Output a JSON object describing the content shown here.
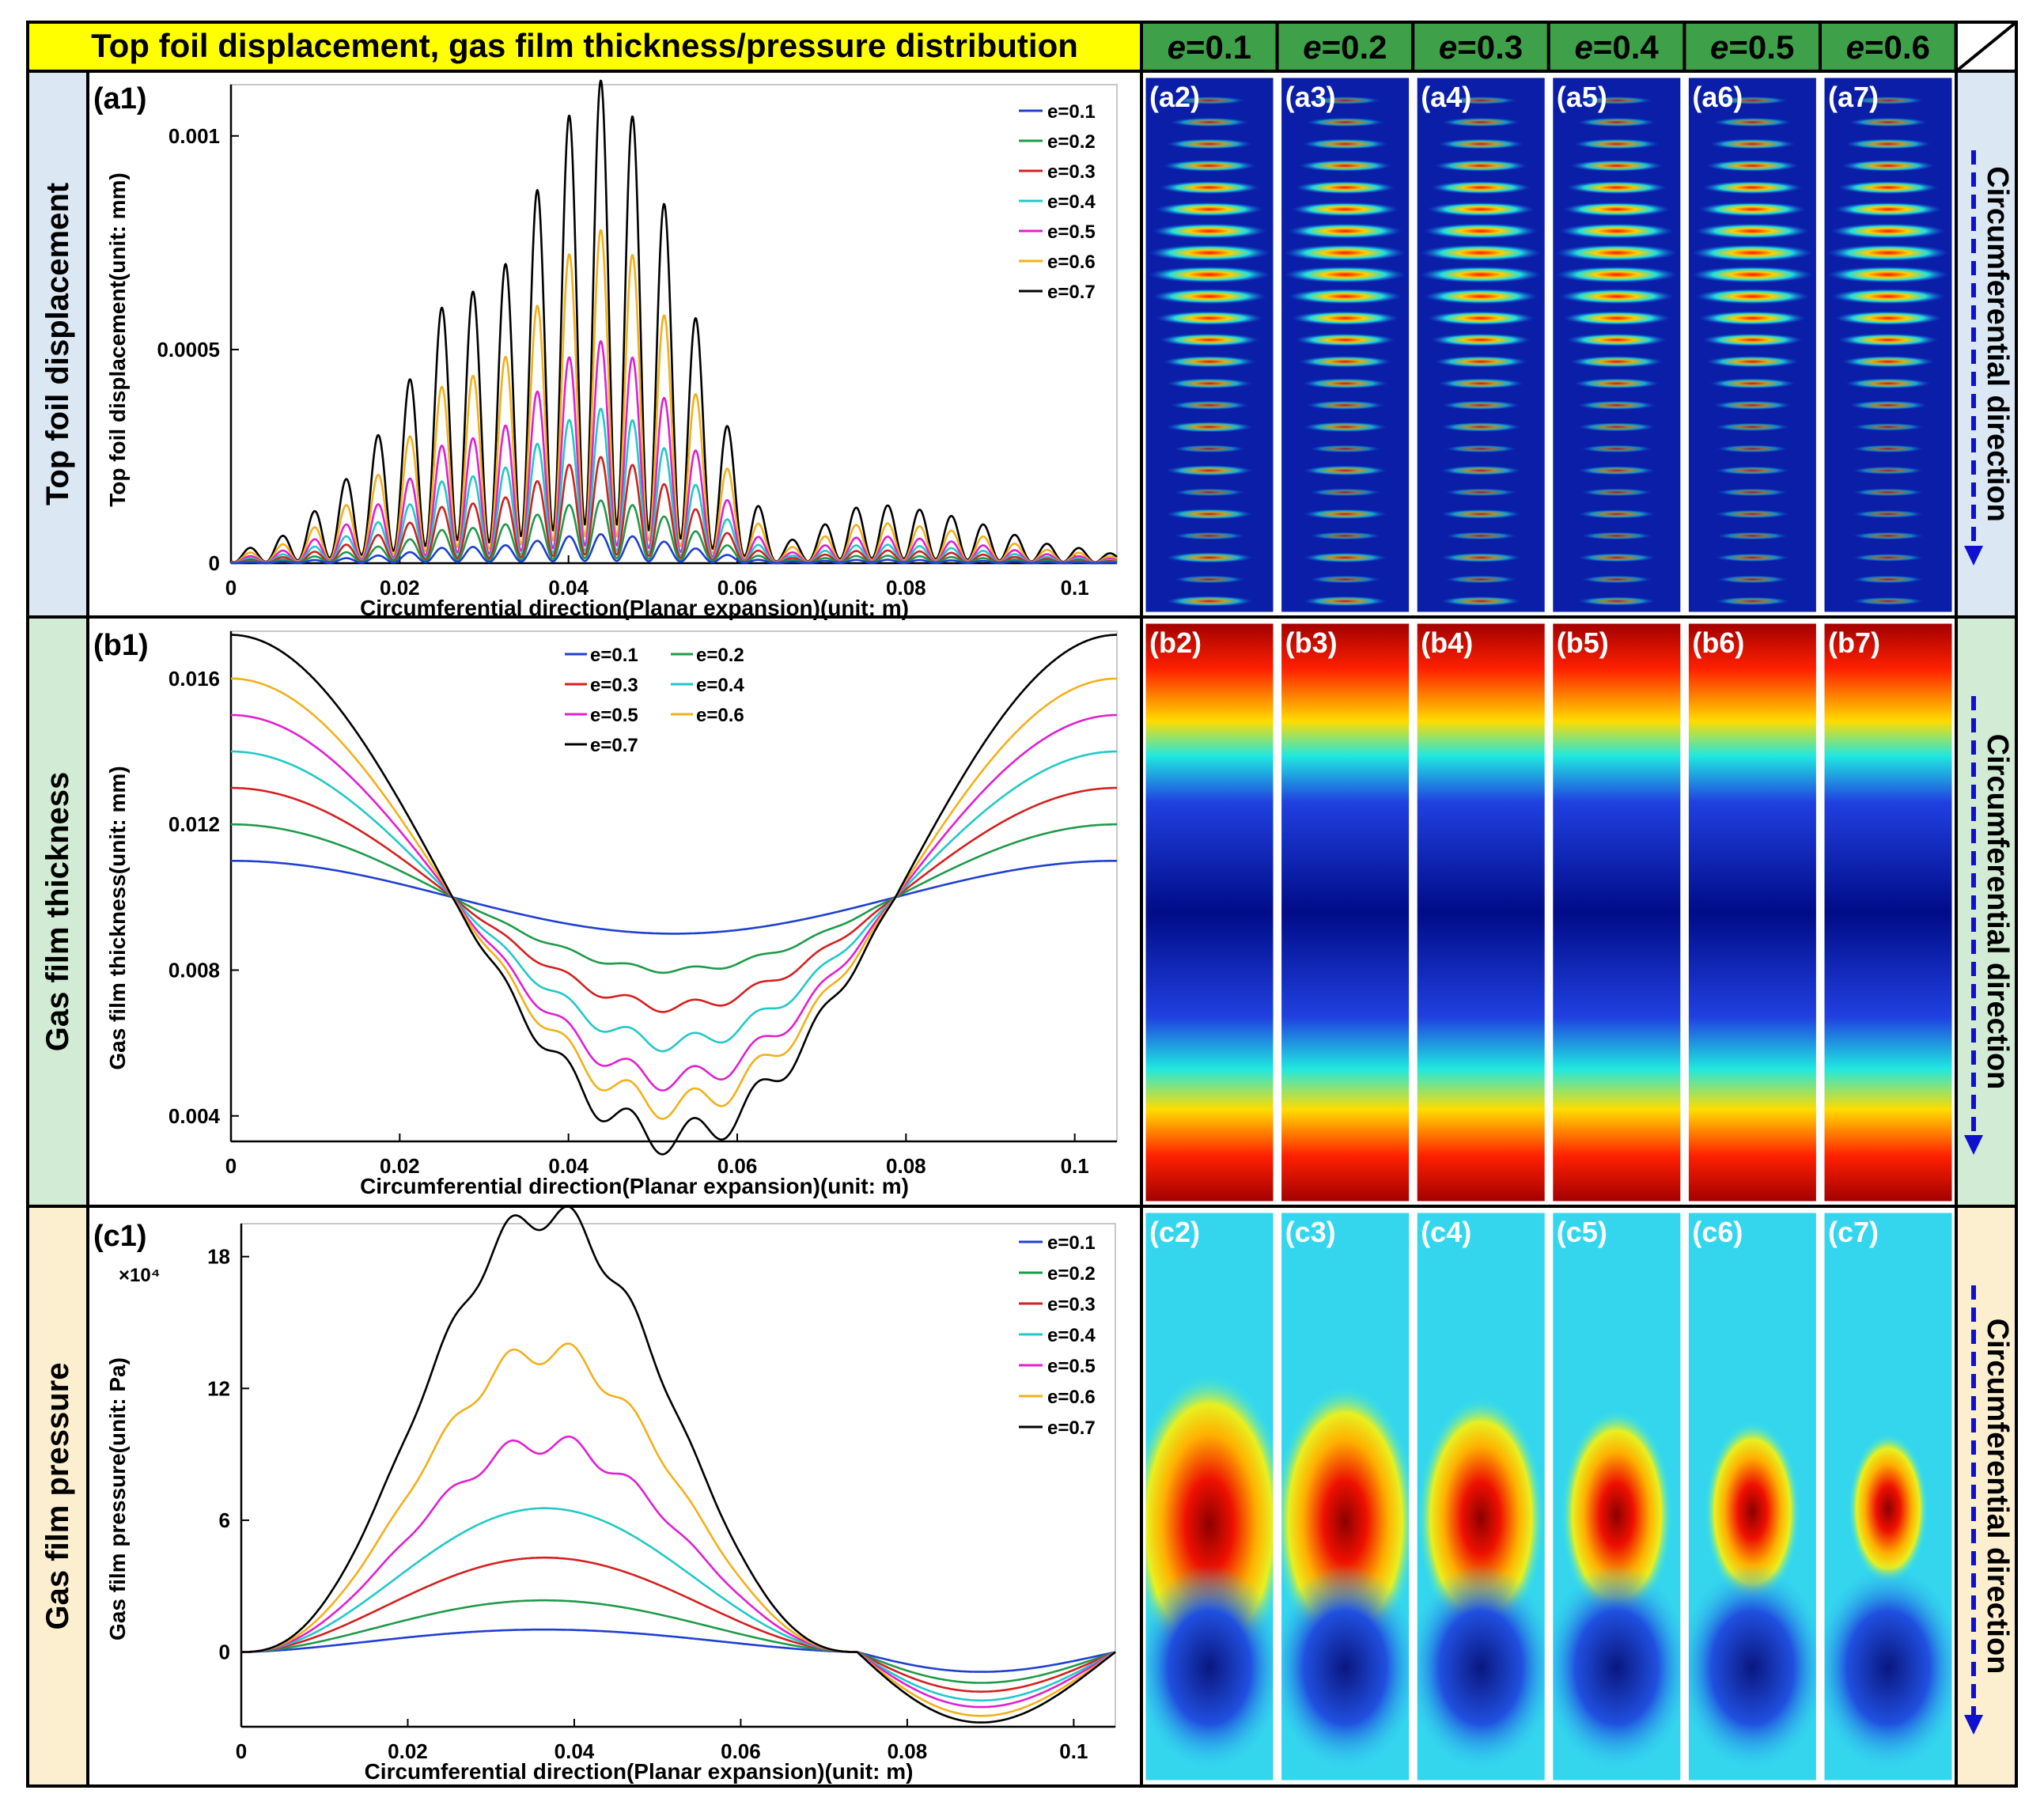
{
  "header": {
    "title": "Top foil displacement, gas film thickness/pressure distribution",
    "columns": [
      "e=0.1",
      "e=0.2",
      "e=0.3",
      "e=0.4",
      "e=0.5",
      "e=0.6"
    ]
  },
  "rows": [
    {
      "label": "Top foil displacement",
      "side_label": "Circumferential direction",
      "band_color": "#dbe8f3",
      "panel_tags": [
        "(a2)",
        "(a3)",
        "(a4)",
        "(a5)",
        "(a6)",
        "(a7)"
      ]
    },
    {
      "label": "Gas film thickness",
      "side_label": "Circumferential direction",
      "band_color": "#d2ebd5",
      "panel_tags": [
        "(b2)",
        "(b3)",
        "(b4)",
        "(b5)",
        "(b6)",
        "(b7)"
      ]
    },
    {
      "label": "Gas film pressure",
      "side_label": "Circumferential direction",
      "band_color": "#fcefcf",
      "panel_tags": [
        "(c2)",
        "(c3)",
        "(c4)",
        "(c5)",
        "(c6)",
        "(c7)"
      ]
    }
  ],
  "colors": {
    "header_yellow": "#ffff00",
    "header_green": "#3ea14a",
    "e=0.1": "#1f3fd0",
    "e=0.2": "#1e9a4a",
    "e=0.3": "#d42020",
    "e=0.4": "#22c8c8",
    "e=0.5": "#e020d0",
    "e=0.6": "#f2b01a",
    "e=0.7": "#000000"
  },
  "chart_data": [
    {
      "panel": "(a1)",
      "type": "line",
      "xlabel": "Circumferential direction(Planar expansion)(unit: m)",
      "ylabel": "Top foil displacement(unit: mm)",
      "xlim": [
        0,
        0.105
      ],
      "ylim": [
        0,
        0.00112
      ],
      "xticks": [
        "0",
        "0.02",
        "0.04",
        "0.06",
        "0.08",
        "0.1"
      ],
      "yticks": [
        "0",
        "0.0005",
        "0.001"
      ],
      "legend": [
        "e=0.1",
        "e=0.2",
        "e=0.3",
        "e=0.4",
        "e=0.5",
        "e=0.6",
        "e=0.7"
      ],
      "legend_position": "top-right",
      "series": [
        {
          "name": "e=0.7",
          "x": [
            0.0,
            0.0038,
            0.0076,
            0.0114,
            0.0152,
            0.019,
            0.0228,
            0.0266,
            0.0304,
            0.0342,
            0.038,
            0.0418,
            0.0456,
            0.0494,
            0.0532,
            0.057,
            0.0608,
            0.0646,
            0.0684,
            0.0722,
            0.076,
            0.0798,
            0.0836,
            0.0874,
            0.0912,
            0.095,
            0.0988,
            0.1026,
            0.105
          ],
          "peaks": [
            3e-05,
            4e-05,
            8e-05,
            0.00015,
            0.00023,
            0.00035,
            0.00049,
            0.00068,
            0.0006,
            0.00078,
            0.00095,
            0.00113,
            0.00113,
            0.00097,
            0.00072,
            0.00043,
            0.00021,
            5e-05,
            6e-05,
            0.00012,
            0.00014,
            0.00013,
            0.00012,
            0.0001,
            8e-05,
            5e-05,
            4e-05,
            3e-05,
            2e-05
          ]
        },
        {
          "name": "e=0.6",
          "peak_scale": 0.69
        },
        {
          "name": "e=0.5",
          "peak_scale": 0.46
        },
        {
          "name": "e=0.4",
          "peak_scale": 0.32
        },
        {
          "name": "e=0.3",
          "peak_scale": 0.22
        },
        {
          "name": "e=0.2",
          "peak_scale": 0.13
        },
        {
          "name": "e=0.1",
          "peak_scale": 0.06
        }
      ]
    },
    {
      "panel": "(b1)",
      "type": "line",
      "xlabel": "Circumferential direction(Planar expansion)(unit: m)",
      "ylabel": "Gas film thickness(unit: mm)",
      "xlim": [
        0,
        0.105
      ],
      "ylim": [
        0.0033,
        0.0173
      ],
      "xticks": [
        "0",
        "0.02",
        "0.04",
        "0.06",
        "0.08",
        "0.1"
      ],
      "yticks": [
        "0.004",
        "0.008",
        "0.012",
        "0.016"
      ],
      "legend": [
        "e=0.1",
        "e=0.2",
        "e=0.3",
        "e=0.4",
        "e=0.5",
        "e=0.6",
        "e=0.7"
      ],
      "legend_position": "top-center",
      "series": [
        {
          "name": "e=0.1",
          "max": 0.011,
          "min": 0.009
        },
        {
          "name": "e=0.2",
          "max": 0.012,
          "min": 0.008
        },
        {
          "name": "e=0.3",
          "max": 0.013,
          "min": 0.007
        },
        {
          "name": "e=0.4",
          "max": 0.014,
          "min": 0.006
        },
        {
          "name": "e=0.5",
          "max": 0.015,
          "min": 0.005
        },
        {
          "name": "e=0.6",
          "max": 0.016,
          "min": 0.0043
        },
        {
          "name": "e=0.7",
          "max": 0.0172,
          "min": 0.0034
        }
      ]
    },
    {
      "panel": "(c1)",
      "type": "line",
      "xlabel": "Circumferential direction(Planar expansion)(unit: m)",
      "ylabel": "Gas film pressure(unit: Pa)",
      "y_multiplier": "×10⁴",
      "xlim": [
        0,
        0.105
      ],
      "ylim": [
        -3.4,
        19.5
      ],
      "xticks": [
        "0",
        "0.02",
        "0.04",
        "0.06",
        "0.08",
        "0.1"
      ],
      "yticks": [
        "0",
        "6",
        "12",
        "18"
      ],
      "legend": [
        "e=0.1",
        "e=0.2",
        "e=0.3",
        "e=0.4",
        "e=0.5",
        "e=0.6",
        "e=0.7"
      ],
      "legend_position": "top-right",
      "series": [
        {
          "name": "e=0.1",
          "peak": 1.0,
          "trough": -0.9
        },
        {
          "name": "e=0.2",
          "peak": 2.3,
          "trough": -1.4
        },
        {
          "name": "e=0.3",
          "peak": 4.2,
          "trough": -1.8
        },
        {
          "name": "e=0.4",
          "peak": 6.4,
          "trough": -2.2
        },
        {
          "name": "e=0.5",
          "peak": 9.3,
          "trough": -2.5
        },
        {
          "name": "e=0.6",
          "peak": 13.4,
          "trough": -2.9
        },
        {
          "name": "e=0.7",
          "peak": 19.5,
          "trough": -3.2
        }
      ]
    }
  ]
}
